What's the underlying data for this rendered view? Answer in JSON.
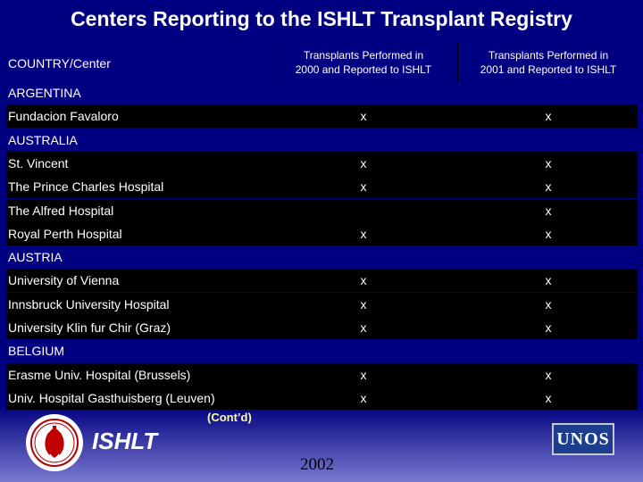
{
  "title": "Centers Reporting to the ISHLT Transplant Registry",
  "header": {
    "col1": "COUNTRY/Center",
    "col2_line1": "Transplants Performed in",
    "col2_line2": "2000 and Reported to ISHLT",
    "col3_line1": "Transplants Performed in",
    "col3_line2": "2001 and Reported to ISHLT"
  },
  "rows": [
    {
      "type": "country",
      "name": "ARGENTINA",
      "m2000": "",
      "m2001": ""
    },
    {
      "type": "center",
      "name": "Fundacion Favaloro",
      "m2000": "x",
      "m2001": "x"
    },
    {
      "type": "country",
      "name": "AUSTRALIA",
      "m2000": "",
      "m2001": ""
    },
    {
      "type": "center",
      "name": "St. Vincent",
      "m2000": "x",
      "m2001": "x"
    },
    {
      "type": "center",
      "name": "The Prince Charles Hospital",
      "m2000": "x",
      "m2001": "x"
    },
    {
      "type": "center",
      "name": "The Alfred Hospital",
      "m2000": "",
      "m2001": "x"
    },
    {
      "type": "center",
      "name": "Royal Perth Hospital",
      "m2000": "x",
      "m2001": "x"
    },
    {
      "type": "country",
      "name": "AUSTRIA",
      "m2000": "",
      "m2001": ""
    },
    {
      "type": "center",
      "name": "University of Vienna",
      "m2000": "x",
      "m2001": "x"
    },
    {
      "type": "center",
      "name": "Innsbruck University Hospital",
      "m2000": "x",
      "m2001": "x"
    },
    {
      "type": "center",
      "name": "University Klin fur Chir (Graz)",
      "m2000": "x",
      "m2001": "x"
    },
    {
      "type": "country",
      "name": "BELGIUM",
      "m2000": "",
      "m2001": ""
    },
    {
      "type": "center",
      "name": "Erasme Univ. Hospital (Brussels)",
      "m2000": "x",
      "m2001": "x"
    },
    {
      "type": "center",
      "name": "Univ. Hospital Gasthuisberg (Leuven)",
      "m2000": "x",
      "m2001": "x"
    }
  ],
  "footer": {
    "contd": "(Cont’d)",
    "ishlt": "ISHLT",
    "year": "2002",
    "unos": "UNOS"
  },
  "colors": {
    "background": "#000080",
    "row_dark": "#000000",
    "contd": "#ffffa0"
  },
  "icons": [
    "ishlt-logo-icon",
    "unos-logo-icon"
  ]
}
